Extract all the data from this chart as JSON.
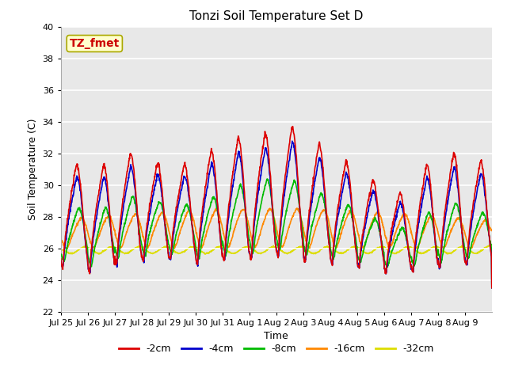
{
  "title": "Tonzi Soil Temperature Set D",
  "xlabel": "Time",
  "ylabel": "Soil Temperature (C)",
  "ylim": [
    22,
    40
  ],
  "yticks": [
    22,
    24,
    26,
    28,
    30,
    32,
    34,
    36,
    38,
    40
  ],
  "annotation_text": "TZ_fmet",
  "annotation_color": "#cc0000",
  "annotation_bg": "#ffffcc",
  "annotation_border": "#aaa800",
  "fig_bg_color": "#ffffff",
  "plot_bg": "#e8e8e8",
  "line_colors": {
    "-2cm": "#dd0000",
    "-4cm": "#0000cc",
    "-8cm": "#00bb00",
    "-16cm": "#ff8800",
    "-32cm": "#dddd00"
  },
  "line_width": 1.2,
  "legend_labels": [
    "-2cm",
    "-4cm",
    "-8cm",
    "-16cm",
    "-32cm"
  ],
  "x_tick_labels": [
    "Jul 25",
    "Jul 26",
    "Jul 27",
    "Jul 28",
    "Jul 29",
    "Jul 30",
    "Jul 31",
    "Aug 1",
    "Aug 2",
    "Aug 3",
    "Aug 4",
    "Aug 5",
    "Aug 6",
    "Aug 7",
    "Aug 8",
    "Aug 9"
  ],
  "num_days": 16,
  "pts_per_day": 96
}
